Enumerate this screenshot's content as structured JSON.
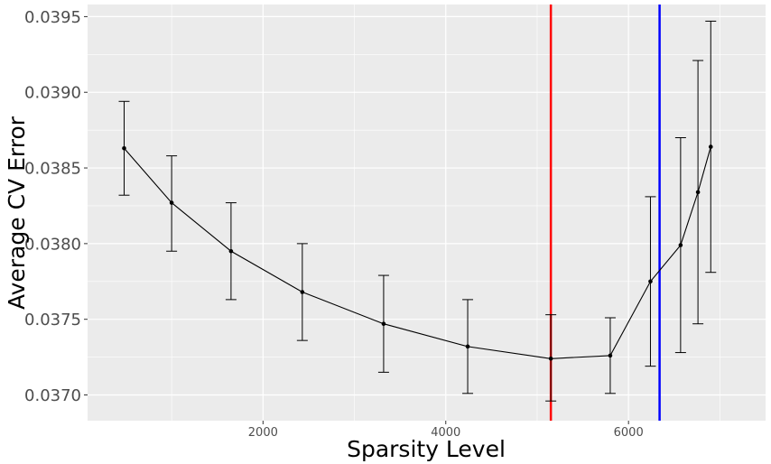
{
  "chart_data": {
    "type": "line",
    "title": "",
    "xlabel": "Sparsity Level",
    "ylabel": "Average CV Error",
    "xlim": [
      80,
      7500
    ],
    "ylim": [
      0.03683,
      0.03958
    ],
    "x_ticks": [
      2000,
      4000,
      6000
    ],
    "y_ticks": [
      0.037,
      0.0375,
      0.038,
      0.0385,
      0.039,
      0.0395
    ],
    "x_tick_labels": [
      "2000",
      "4000",
      "6000"
    ],
    "y_tick_labels": [
      "0.0370",
      "0.0375",
      "0.0380",
      "0.0385",
      "0.0390",
      "0.0395"
    ],
    "grid": true,
    "series": [
      {
        "points": [
          {
            "x": 480,
            "y": 0.03863,
            "lo": 0.03832,
            "hi": 0.03894
          },
          {
            "x": 1000,
            "y": 0.03827,
            "lo": 0.03795,
            "hi": 0.03858
          },
          {
            "x": 1650,
            "y": 0.03795,
            "lo": 0.03763,
            "hi": 0.03827
          },
          {
            "x": 2430,
            "y": 0.03768,
            "lo": 0.03736,
            "hi": 0.038
          },
          {
            "x": 3320,
            "y": 0.03747,
            "lo": 0.03715,
            "hi": 0.03779
          },
          {
            "x": 4240,
            "y": 0.03732,
            "lo": 0.03701,
            "hi": 0.03763
          },
          {
            "x": 5150,
            "y": 0.03724,
            "lo": 0.03696,
            "hi": 0.03753
          },
          {
            "x": 5800,
            "y": 0.03726,
            "lo": 0.03701,
            "hi": 0.03751
          },
          {
            "x": 6240,
            "y": 0.03775,
            "lo": 0.03719,
            "hi": 0.03831
          },
          {
            "x": 6570,
            "y": 0.03799,
            "lo": 0.03728,
            "hi": 0.0387
          },
          {
            "x": 6760,
            "y": 0.03834,
            "lo": 0.03747,
            "hi": 0.03921
          },
          {
            "x": 6900,
            "y": 0.03864,
            "lo": 0.03781,
            "hi": 0.03947
          }
        ]
      }
    ],
    "reference_lines": [
      {
        "x": 5150,
        "color": "#ff0000"
      },
      {
        "x": 6340,
        "color": "#0000ff"
      }
    ],
    "colors": {
      "panel_background": "#ebebeb",
      "grid": "#ffffff",
      "series": "#000000"
    }
  }
}
